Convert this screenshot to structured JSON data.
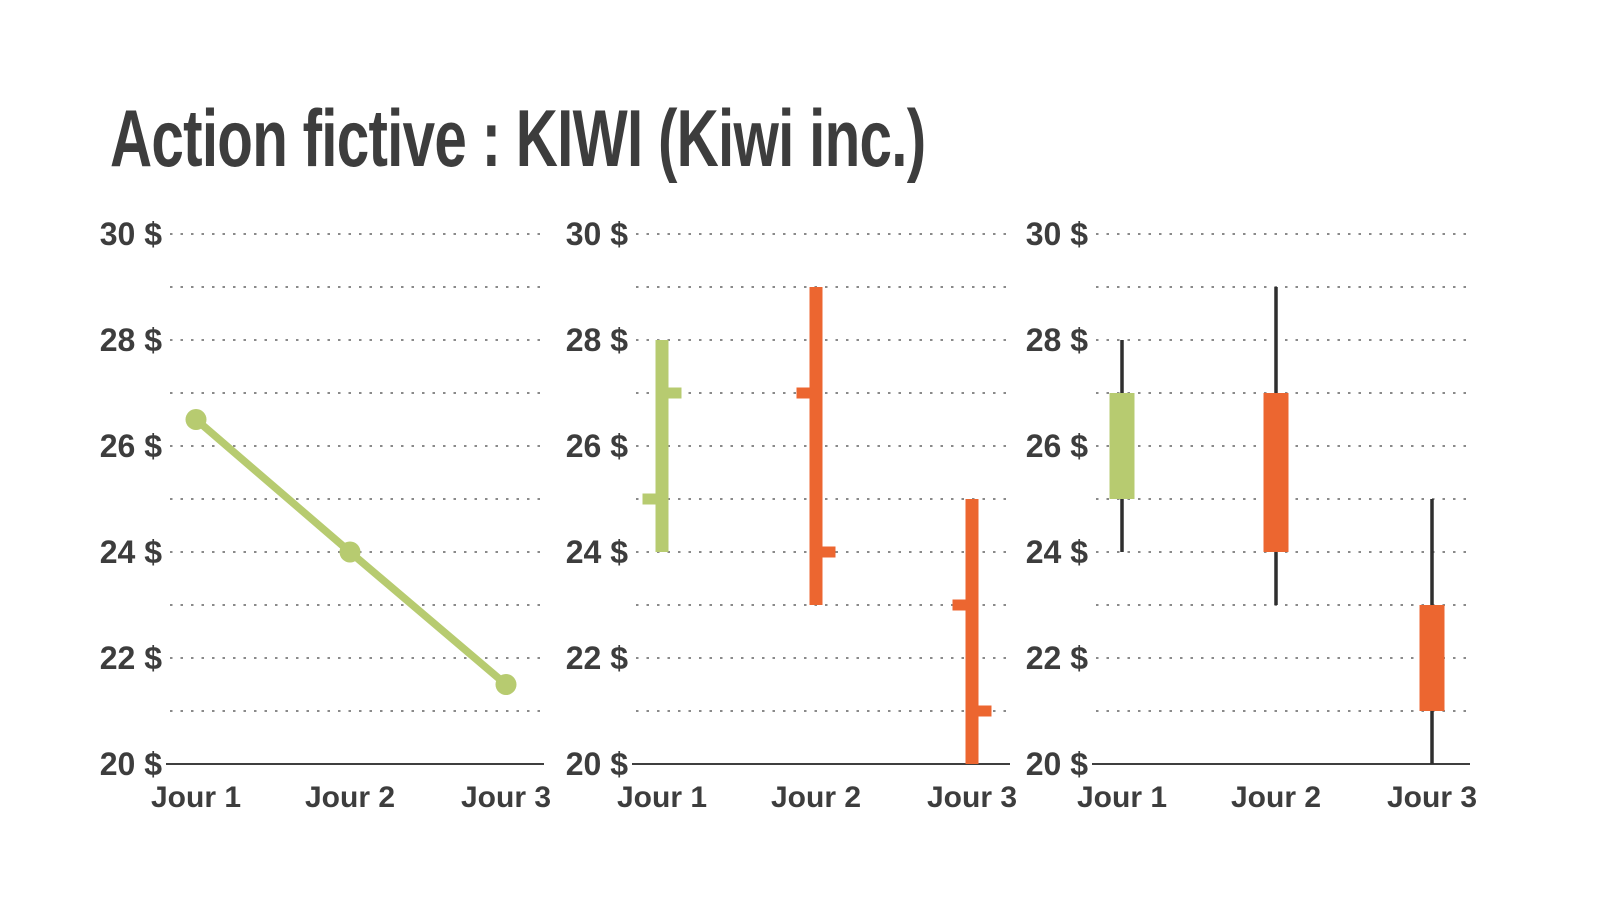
{
  "title": "Action fictive : KIWI (Kiwi inc.)",
  "axis": {
    "y_min": 20,
    "y_max": 30,
    "y_gridline_step": 1,
    "y_label_suffix": " $",
    "y_tick_labels": [
      {
        "value": 30,
        "label": "30 $"
      },
      {
        "value": 28,
        "label": "28 $"
      },
      {
        "value": 26,
        "label": "26 $"
      },
      {
        "value": 24,
        "label": "24 $"
      },
      {
        "value": 22,
        "label": "22 $"
      },
      {
        "value": 20,
        "label": "20 $"
      }
    ],
    "x_categories": [
      "Jour 1",
      "Jour 2",
      "Jour 3"
    ]
  },
  "colors": {
    "up": "#b7cb70",
    "down": "#ec6630",
    "line": "#b7cb70",
    "text": "#3d3d3d",
    "grid": "#8a8a8a",
    "axis_line": "#3f3f3f",
    "wick": "#2f2f2f",
    "background": "#ffffff"
  },
  "chart_data": [
    {
      "type": "line",
      "name": "price-line-chart",
      "x": [
        "Jour 1",
        "Jour 2",
        "Jour 3"
      ],
      "y": [
        26.5,
        24,
        21.5
      ],
      "ylim": [
        20,
        30
      ],
      "grid": "dotted-horizontal",
      "legend": "none",
      "marker": "circle"
    },
    {
      "type": "ohlc-bar",
      "name": "ohlc-bar-chart",
      "categories": [
        "Jour 1",
        "Jour 2",
        "Jour 3"
      ],
      "ylim": [
        20,
        30
      ],
      "grid": "dotted-horizontal",
      "legend": "none",
      "series": [
        {
          "day": "Jour 1",
          "open": 25,
          "high": 28,
          "low": 24,
          "close": 27,
          "direction": "up"
        },
        {
          "day": "Jour 2",
          "open": 27,
          "high": 29,
          "low": 23,
          "close": 24,
          "direction": "down"
        },
        {
          "day": "Jour 3",
          "open": 23,
          "high": 25,
          "low": 20,
          "close": 21,
          "direction": "down"
        }
      ]
    },
    {
      "type": "candlestick",
      "name": "candlestick-chart",
      "categories": [
        "Jour 1",
        "Jour 2",
        "Jour 3"
      ],
      "ylim": [
        20,
        30
      ],
      "grid": "dotted-horizontal",
      "legend": "none",
      "series": [
        {
          "day": "Jour 1",
          "open": 25,
          "high": 28,
          "low": 24,
          "close": 27,
          "direction": "up"
        },
        {
          "day": "Jour 2",
          "open": 27,
          "high": 29,
          "low": 23,
          "close": 24,
          "direction": "down"
        },
        {
          "day": "Jour 3",
          "open": 23,
          "high": 25,
          "low": 20,
          "close": 21,
          "direction": "down"
        }
      ]
    }
  ]
}
